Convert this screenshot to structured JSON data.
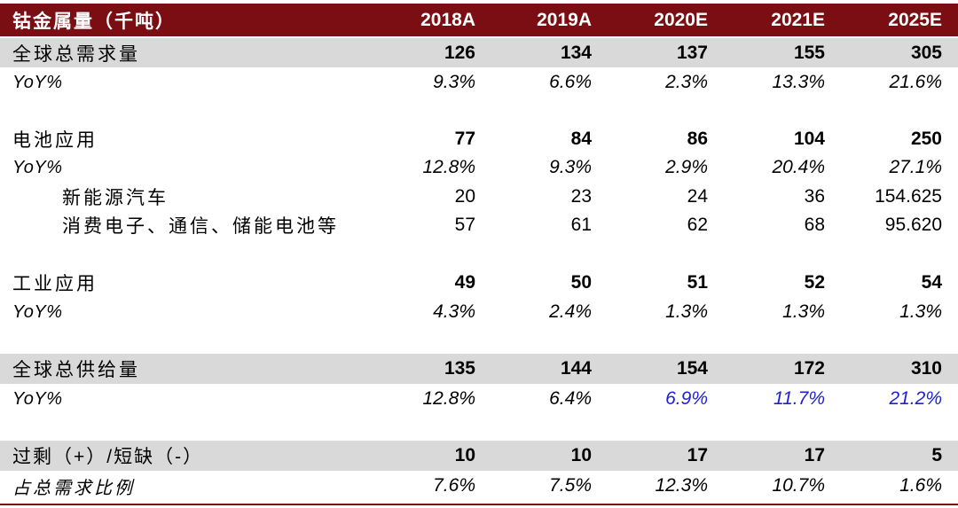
{
  "columns": [
    "2018A",
    "2019A",
    "2020E",
    "2021E",
    "2025E"
  ],
  "header_label": "钴金属量（千吨）",
  "rows": [
    {
      "label": "全球总需求量",
      "values": [
        "126",
        "134",
        "137",
        "155",
        "305"
      ]
    },
    {
      "label": "YoY%",
      "values": [
        "9.3%",
        "6.6%",
        "2.3%",
        "13.3%",
        "21.6%"
      ]
    },
    {
      "label": "电池应用",
      "values": [
        "77",
        "84",
        "86",
        "104",
        "250"
      ]
    },
    {
      "label": "YoY%",
      "values": [
        "12.8%",
        "9.3%",
        "2.9%",
        "20.4%",
        "27.1%"
      ]
    },
    {
      "label": "新能源汽车",
      "values": [
        "20",
        "23",
        "24",
        "36",
        "154.625"
      ]
    },
    {
      "label": "消费电子、通信、储能电池等",
      "values": [
        "57",
        "61",
        "62",
        "68",
        "95.620"
      ]
    },
    {
      "label": "工业应用",
      "values": [
        "49",
        "50",
        "51",
        "52",
        "54"
      ]
    },
    {
      "label": "YoY%",
      "values": [
        "4.3%",
        "2.4%",
        "1.3%",
        "1.3%",
        "1.3%"
      ]
    },
    {
      "label": "全球总供给量",
      "values": [
        "135",
        "144",
        "154",
        "172",
        "310"
      ]
    },
    {
      "label": "YoY%",
      "values": [
        "12.8%",
        "6.4%",
        "6.9%",
        "11.7%",
        "21.2%"
      ]
    },
    {
      "label": "过剩（+）/短缺（-）",
      "values": [
        "10",
        "10",
        "17",
        "17",
        "5"
      ]
    },
    {
      "label": "占总需求比例",
      "values": [
        "7.6%",
        "7.5%",
        "12.3%",
        "10.7%",
        "1.6%"
      ]
    }
  ],
  "colors": {
    "header_bg": "#7a0e12",
    "highlight_bg": "#d9d9d9",
    "forecast_text": "#1f1fd6"
  }
}
